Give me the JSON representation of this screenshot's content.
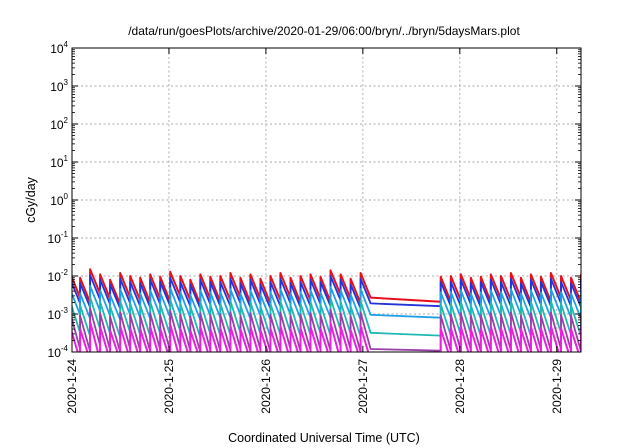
{
  "chart_data": {
    "type": "line",
    "title": "/data/run/goesPlots/archive/2020-01-29/06:00/bryn/../bryn/5daysMars.plot",
    "xlabel": "Coordinated Universal Time (UTC)",
    "ylabel": "cGy/day",
    "yscale": "log",
    "ylim": [
      0.0001,
      10000
    ],
    "xlim": [
      "2020-01-24T00:00",
      "2020-01-29T06:00"
    ],
    "grid": true,
    "legend": "none",
    "y_ticks": [
      {
        "base": "10",
        "exp": "4"
      },
      {
        "base": "10",
        "exp": "3"
      },
      {
        "base": "10",
        "exp": "2"
      },
      {
        "base": "10",
        "exp": "1"
      },
      {
        "base": "10",
        "exp": "0"
      },
      {
        "base": "10",
        "exp": "-1"
      },
      {
        "base": "10",
        "exp": "-2"
      },
      {
        "base": "10",
        "exp": "-3"
      },
      {
        "base": "10",
        "exp": "-4"
      }
    ],
    "x_ticks": [
      "2020-1-24",
      "2020-1-25",
      "2020-1-26",
      "2020-1-27",
      "2020-1-28",
      "2020-1-29"
    ],
    "gap": {
      "start": "2020-01-27T03:00",
      "end": "2020-01-27T17:00"
    },
    "series": [
      {
        "color": "#e8101c",
        "peaks": [
          0.012,
          0.009,
          0.015,
          0.011,
          0.008,
          0.012,
          0.01,
          0.009,
          0.011,
          0.0095,
          0.013,
          0.01,
          0.008,
          0.011,
          0.0095,
          0.01,
          0.012,
          0.009,
          0.011,
          0.0085,
          0.01,
          0.012,
          0.009,
          0.01,
          0.011,
          0.0095,
          0.014,
          0.011,
          0.0085,
          0.012,
          0.0095,
          0.01,
          0.011,
          0.009,
          0.0095,
          0.011,
          0.01,
          0.012,
          0.009,
          0.011,
          0.0095,
          0.012,
          0.01,
          0.009,
          0.011,
          0.01,
          0.012,
          0.0095,
          0.01
        ],
        "troughs": [
          0.0027,
          0.002,
          0.0034,
          0.0025,
          0.0018,
          0.0027,
          0.0023,
          0.002,
          0.0025,
          0.0021,
          0.0029,
          0.0023,
          0.0018,
          0.0025,
          0.0021,
          0.0023,
          0.0027,
          0.002,
          0.0025,
          0.0019,
          0.0023,
          0.0027,
          0.002,
          0.0023,
          0.0025,
          0.0021,
          0.0032,
          0.0025,
          0.0019,
          0.0027,
          0.0021,
          0.0023,
          0.0025,
          0.002,
          0.0021,
          0.0025,
          0.0023,
          0.0027,
          0.002,
          0.0025,
          0.0021,
          0.0027,
          0.0023,
          0.002,
          0.0025,
          0.0023,
          0.0027,
          0.0021,
          0.0023
        ]
      },
      {
        "color": "#2433d8",
        "peaks": [
          0.0085,
          0.0065,
          0.0105,
          0.008,
          0.006,
          0.0085,
          0.007,
          0.0065,
          0.008,
          0.007,
          0.009,
          0.007,
          0.006,
          0.008,
          0.007,
          0.007,
          0.0085,
          0.0065,
          0.008,
          0.006,
          0.007,
          0.0085,
          0.0065,
          0.007,
          0.008,
          0.007,
          0.01,
          0.008,
          0.006,
          0.0085,
          0.007,
          0.007,
          0.008,
          0.0065,
          0.007,
          0.008,
          0.007,
          0.0085,
          0.0065,
          0.008,
          0.007,
          0.0085,
          0.007,
          0.0065,
          0.008,
          0.007,
          0.0085,
          0.007,
          0.007
        ],
        "troughs": [
          0.0019,
          0.0015,
          0.0024,
          0.0018,
          0.0014,
          0.0019,
          0.0016,
          0.0015,
          0.0018,
          0.0016,
          0.002,
          0.0016,
          0.0014,
          0.0018,
          0.0016,
          0.0016,
          0.0019,
          0.0015,
          0.0018,
          0.0014,
          0.0016,
          0.0019,
          0.0015,
          0.0016,
          0.0018,
          0.0016,
          0.0023,
          0.0018,
          0.0014,
          0.0019,
          0.0016,
          0.0016,
          0.0018,
          0.0015,
          0.0016,
          0.0018,
          0.0016,
          0.0019,
          0.0015,
          0.0018,
          0.0016,
          0.0019,
          0.0016,
          0.0015,
          0.0018,
          0.0016,
          0.0019,
          0.0016,
          0.0016
        ]
      },
      {
        "color": "#1f9fe8",
        "peaks": [
          0.0045,
          0.0035,
          0.0055,
          0.0042,
          0.0032,
          0.0045,
          0.0038,
          0.0035,
          0.0042,
          0.0037,
          0.0048,
          0.0038,
          0.0032,
          0.0042,
          0.0037,
          0.0038,
          0.0045,
          0.0035,
          0.0042,
          0.0033,
          0.0038,
          0.0045,
          0.0035,
          0.0038,
          0.0042,
          0.0037,
          0.0052,
          0.0042,
          0.0033,
          0.0045,
          0.0037,
          0.0038,
          0.0042,
          0.0035,
          0.0037,
          0.0042,
          0.0038,
          0.0045,
          0.0035,
          0.0042,
          0.0037,
          0.0045,
          0.0038,
          0.0035,
          0.0042,
          0.0038,
          0.0045,
          0.0037,
          0.0038
        ],
        "troughs": [
          0.00095,
          0.00075,
          0.0012,
          0.0009,
          0.0007,
          0.00095,
          0.0008,
          0.00075,
          0.0009,
          0.0008,
          0.001,
          0.0008,
          0.0007,
          0.0009,
          0.0008,
          0.0008,
          0.00095,
          0.00075,
          0.0009,
          0.0007,
          0.0008,
          0.00095,
          0.00075,
          0.0008,
          0.0009,
          0.0008,
          0.0011,
          0.0009,
          0.0007,
          0.00095,
          0.0008,
          0.0008,
          0.0009,
          0.00075,
          0.0008,
          0.0009,
          0.0008,
          0.00095,
          0.00075,
          0.0009,
          0.0008,
          0.00095,
          0.0008,
          0.00075,
          0.0009,
          0.0008,
          0.00095,
          0.0008,
          0.0008
        ]
      },
      {
        "color": "#20b8b0",
        "peaks": [
          0.0022,
          0.0017,
          0.0028,
          0.0021,
          0.0016,
          0.0022,
          0.0019,
          0.0017,
          0.0021,
          0.0018,
          0.0024,
          0.0019,
          0.0016,
          0.0021,
          0.0018,
          0.0019,
          0.0022,
          0.0017,
          0.0021,
          0.0016,
          0.0019,
          0.0022,
          0.0017,
          0.0019,
          0.0021,
          0.0018,
          0.0026,
          0.0021,
          0.0016,
          0.0022,
          0.0018,
          0.0019,
          0.0021,
          0.0017,
          0.0018,
          0.0021,
          0.0019,
          0.0022,
          0.0017,
          0.0021,
          0.0018,
          0.0022,
          0.0019,
          0.0017,
          0.0021,
          0.0019,
          0.0022,
          0.0018,
          0.0019
        ],
        "troughs": [
          0.00032,
          0.00026,
          0.0004,
          0.0003,
          0.00024,
          0.00032,
          0.00028,
          0.00026,
          0.0003,
          0.00027,
          0.00035,
          0.00028,
          0.00024,
          0.0003,
          0.00027,
          0.00028,
          0.00032,
          0.00026,
          0.0003,
          0.00025,
          0.00028,
          0.00032,
          0.00026,
          0.00028,
          0.0003,
          0.00027,
          0.00038,
          0.0003,
          0.00025,
          0.00032,
          0.00027,
          0.00028,
          0.0003,
          0.00026,
          0.00027,
          0.0003,
          0.00028,
          0.00032,
          0.00026,
          0.0003,
          0.00027,
          0.00032,
          0.00028,
          0.00026,
          0.0003,
          0.00028,
          0.00032,
          0.00027,
          0.00028
        ]
      },
      {
        "color": "#9b3fa8",
        "peaks": [
          0.0011,
          0.0009,
          0.0014,
          0.00105,
          0.00085,
          0.0011,
          0.00095,
          0.0009,
          0.00105,
          0.00092,
          0.0012,
          0.00095,
          0.00085,
          0.00105,
          0.00092,
          0.00095,
          0.0011,
          0.0009,
          0.00105,
          0.00088,
          0.00095,
          0.0011,
          0.0009,
          0.00095,
          0.00105,
          0.00092,
          0.0013,
          0.00105,
          0.00088,
          0.0011,
          0.00092,
          0.00095,
          0.00105,
          0.0009,
          0.00092,
          0.00105,
          0.00095,
          0.0011,
          0.0009,
          0.00105,
          0.00092,
          0.0011,
          0.00095,
          0.0009,
          0.00105,
          0.00095,
          0.0011,
          0.00092,
          0.00095
        ],
        "troughs": [
          0.00012,
          0.000105,
          0.00015,
          0.000115,
          0.0001,
          0.00012,
          0.00011,
          0.000105,
          0.000115,
          0.000108,
          0.00013,
          0.00011,
          0.0001,
          0.000115,
          0.000108,
          0.00011,
          0.00012,
          0.000105,
          0.000115,
          0.000102,
          0.00011,
          0.00012,
          0.000105,
          0.00011,
          0.000115,
          0.000108,
          0.00014,
          0.000115,
          0.000102,
          0.00012,
          0.000108,
          0.00011,
          0.000115,
          0.000105,
          0.000108,
          0.000115,
          0.00011,
          0.00012,
          0.000105,
          0.000115,
          0.000108,
          0.00012,
          0.00011,
          0.000105,
          0.000115,
          0.00011,
          0.00012,
          0.000108,
          0.00011
        ]
      },
      {
        "color": "#ee1ee0",
        "peaks": [
          0.00048,
          0.0004,
          0.00062,
          0.00046,
          0.00037,
          0.00048,
          0.00042,
          0.0004,
          0.00046,
          0.00041,
          0.00053,
          0.00042,
          0.00037,
          0.00046,
          0.00041,
          0.00042,
          0.00048,
          0.0004,
          0.00046,
          0.00038,
          0.00042,
          0.00048,
          0.0004,
          0.00042,
          0.00046,
          0.00041,
          0.00058,
          0.00046,
          0.00038,
          0.00048,
          0.00041,
          0.00042,
          0.00046,
          0.0004,
          0.00041,
          0.00046,
          0.00042,
          0.00048,
          0.0004,
          0.00046,
          0.00041,
          0.00048,
          0.00042,
          0.0004,
          0.00046,
          0.00042,
          0.00048,
          0.00041,
          0.00042
        ],
        "troughs": [
          6e-05,
          6e-05,
          6e-05,
          6e-05,
          6e-05,
          6e-05,
          6e-05,
          6e-05,
          6e-05,
          6e-05,
          6e-05,
          6e-05,
          6e-05,
          6e-05,
          6e-05,
          6e-05,
          6e-05,
          6e-05,
          6e-05,
          6e-05,
          6e-05,
          6e-05,
          6e-05,
          6e-05,
          6e-05,
          6e-05,
          6e-05,
          6e-05,
          6e-05,
          6e-05,
          6e-05,
          6e-05,
          6e-05,
          6e-05,
          6e-05,
          6e-05,
          6e-05,
          6e-05,
          6e-05,
          6e-05,
          6e-05,
          6e-05,
          6e-05,
          6e-05,
          6e-05,
          6e-05,
          6e-05,
          6e-05,
          6e-05
        ]
      }
    ]
  }
}
